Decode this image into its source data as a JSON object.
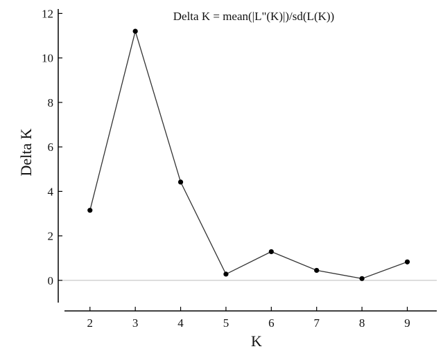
{
  "chart_data": {
    "type": "line",
    "title": "Delta K = mean(|L\"(K)|)/sd(L(K))",
    "xlabel": "K",
    "ylabel": "Delta K",
    "x": [
      2,
      3,
      4,
      5,
      6,
      7,
      8,
      9
    ],
    "series": [
      {
        "values": [
          3.15,
          11.2,
          4.42,
          0.28,
          1.29,
          0.45,
          0.08,
          0.83
        ]
      }
    ],
    "xticks": [
      "2",
      "3",
      "4",
      "5",
      "6",
      "7",
      "8",
      "9"
    ],
    "yticks": [
      "0",
      "2",
      "4",
      "6",
      "8",
      "10",
      "12"
    ],
    "xlim": [
      1.3,
      9.65
    ],
    "ylim": [
      -1.0,
      12.2
    ],
    "grid": false,
    "reference_line_y": 0,
    "colors": {
      "line": "#333333",
      "marker": "#000000",
      "axis": "#000000",
      "reference": "#bbbbbb"
    }
  }
}
